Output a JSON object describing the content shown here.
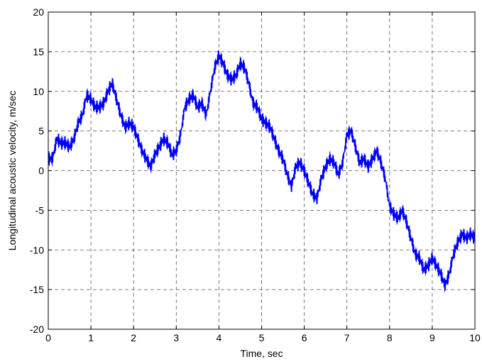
{
  "chart_data": {
    "type": "line",
    "title": "",
    "xlabel": "Time, sec",
    "ylabel": "Longitudinal acoustic velocity, m/sec",
    "xlim": [
      0,
      10
    ],
    "ylim": [
      -20,
      20
    ],
    "xticks": [
      0,
      1,
      2,
      3,
      4,
      5,
      6,
      7,
      8,
      9,
      10
    ],
    "yticks": [
      -20,
      -15,
      -10,
      -5,
      0,
      5,
      10,
      15,
      20
    ],
    "xtick_labels": [
      "0",
      "1",
      "2",
      "3",
      "4",
      "5",
      "6",
      "7",
      "8",
      "9",
      "10"
    ],
    "ytick_labels": [
      "-20",
      "-15",
      "-10",
      "-5",
      "0",
      "5",
      "10",
      "15",
      "20"
    ],
    "grid": true,
    "grid_style": "dashed",
    "line_color": "#0000ff",
    "series": [
      {
        "x": [
          0,
          0.1,
          0.2,
          0.3,
          0.4,
          0.5,
          0.6,
          0.7,
          0.8,
          0.9,
          1.0,
          1.1,
          1.2,
          1.3,
          1.4,
          1.5,
          1.6,
          1.7,
          1.8,
          1.9,
          2.0,
          2.1,
          2.2,
          2.3,
          2.4,
          2.5,
          2.6,
          2.7,
          2.8,
          2.9,
          3.0,
          3.1,
          3.2,
          3.3,
          3.4,
          3.5,
          3.6,
          3.7,
          3.8,
          3.9,
          4.0,
          4.1,
          4.2,
          4.3,
          4.4,
          4.5,
          4.6,
          4.7,
          4.8,
          4.9,
          5.0,
          5.1,
          5.2,
          5.3,
          5.4,
          5.5,
          5.6,
          5.7,
          5.8,
          5.9,
          6.0,
          6.1,
          6.2,
          6.3,
          6.4,
          6.5,
          6.6,
          6.7,
          6.8,
          6.9,
          7.0,
          7.1,
          7.2,
          7.3,
          7.4,
          7.5,
          7.6,
          7.7,
          7.8,
          7.9,
          8.0,
          8.1,
          8.2,
          8.3,
          8.4,
          8.5,
          8.6,
          8.7,
          8.8,
          8.9,
          9.0,
          9.1,
          9.2,
          9.3,
          9.4,
          9.5,
          9.6,
          9.7,
          9.8,
          9.9,
          10.0
        ],
        "y": [
          1.5,
          1.5,
          4.0,
          3.5,
          3.5,
          3.0,
          4.0,
          6.0,
          7.0,
          9.5,
          9.0,
          8.0,
          8.0,
          8.5,
          10.0,
          11.0,
          9.0,
          7.0,
          5.5,
          6.0,
          5.5,
          4.0,
          2.5,
          1.5,
          0.5,
          2.0,
          3.0,
          4.0,
          3.5,
          2.0,
          2.5,
          4.5,
          8.0,
          9.0,
          9.5,
          8.0,
          8.5,
          7.0,
          10.0,
          13.0,
          14.5,
          13.5,
          12.0,
          11.5,
          12.0,
          13.5,
          13.0,
          11.0,
          8.5,
          8.0,
          6.5,
          6.0,
          5.5,
          4.0,
          2.5,
          1.5,
          -0.5,
          -2.0,
          0.5,
          1.0,
          0.0,
          -1.5,
          -3.0,
          -3.5,
          -1.0,
          0.5,
          1.5,
          1.0,
          -0.5,
          1.0,
          4.5,
          5.0,
          3.0,
          1.0,
          1.5,
          0.5,
          1.5,
          2.5,
          1.0,
          -1.0,
          -4.5,
          -5.5,
          -6.0,
          -5.0,
          -6.5,
          -8.5,
          -10.5,
          -11.0,
          -12.5,
          -12.0,
          -11.0,
          -12.0,
          -13.0,
          -14.5,
          -13.0,
          -10.5,
          -9.0,
          -8.0,
          -8.5,
          -8.0,
          -8.5
        ]
      }
    ]
  }
}
